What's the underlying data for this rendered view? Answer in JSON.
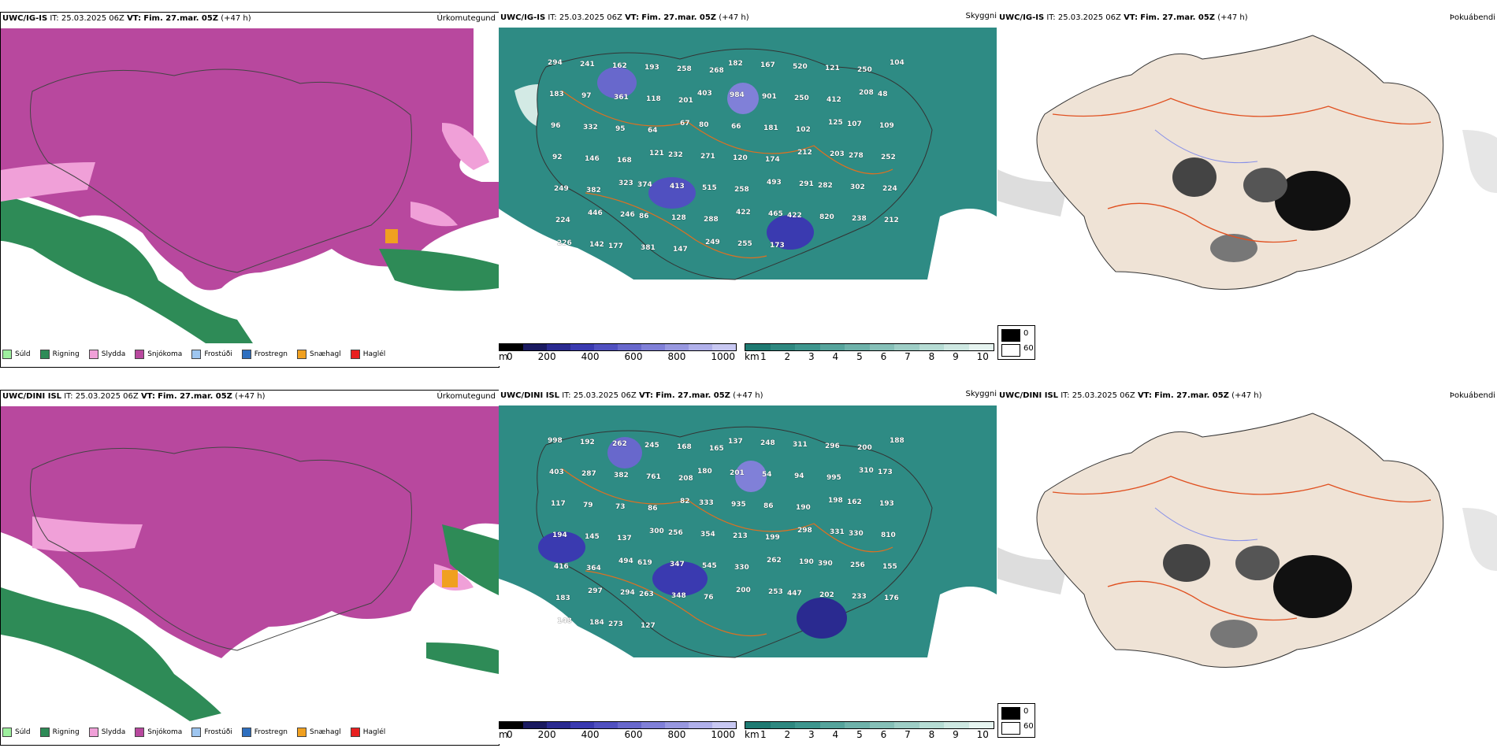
{
  "rows": [
    {
      "model": "UWC/IG-IS",
      "it_label": "IT:",
      "it_value": "25.03.2025 06Z",
      "vt_label": "VT:",
      "vt_value": "Fim. 27.mar. 05Z",
      "lead": "(+47 h)",
      "precip_title": "Úrkomutegund",
      "vis_title": "Skyggni",
      "fog_title": "Þokuábendi",
      "vis_labels": [
        "294",
        "241",
        "162",
        "193",
        "258",
        "268",
        "182",
        "167",
        "520",
        "121",
        "250",
        "104",
        "183",
        "97",
        "361",
        "118",
        "201",
        "403",
        "984",
        "901",
        "250",
        "412",
        "208",
        "48",
        "96",
        "332",
        "95",
        "64",
        "67",
        "80",
        "66",
        "181",
        "102",
        "125",
        "107",
        "109",
        "92",
        "146",
        "168",
        "121",
        "232",
        "271",
        "120",
        "174",
        "212",
        "203",
        "278",
        "252",
        "249",
        "382",
        "323",
        "374",
        "413",
        "515",
        "258",
        "493",
        "291",
        "282",
        "302",
        "224",
        "224",
        "446",
        "246",
        "86",
        "128",
        "288",
        "422",
        "465",
        "422",
        "820",
        "238",
        "212",
        "226",
        "142",
        "177",
        "381",
        "147",
        "249",
        "255",
        "173"
      ]
    },
    {
      "model": "UWC/DINI ISL",
      "it_label": "IT:",
      "it_value": "25.03.2025 06Z",
      "vt_label": "VT:",
      "vt_value": "Fim. 27.mar. 05Z",
      "lead": "(+47 h)",
      "precip_title": "Úrkomutegund",
      "vis_title": "Skyggni",
      "fog_title": "Þokuábendi",
      "vis_labels": [
        "998",
        "192",
        "262",
        "245",
        "168",
        "165",
        "137",
        "248",
        "311",
        "296",
        "200",
        "188",
        "403",
        "287",
        "382",
        "761",
        "208",
        "180",
        "201",
        "54",
        "94",
        "995",
        "310",
        "173",
        "117",
        "79",
        "73",
        "86",
        "82",
        "333",
        "935",
        "86",
        "190",
        "198",
        "162",
        "193",
        "194",
        "145",
        "137",
        "300",
        "256",
        "354",
        "213",
        "199",
        "298",
        "331",
        "330",
        "810",
        "416",
        "364",
        "494",
        "619",
        "347",
        "545",
        "330",
        "262",
        "190",
        "390",
        "256",
        "155",
        "183",
        "297",
        "294",
        "263",
        "348",
        "76",
        "200",
        "253",
        "447",
        "202",
        "233",
        "176",
        "148",
        "184",
        "273",
        "127"
      ]
    }
  ],
  "precip_legend": [
    {
      "label": "Súld",
      "color": "#9ef09e"
    },
    {
      "label": "Rigning",
      "color": "#2e8b57"
    },
    {
      "label": "Slydda",
      "color": "#f0a0d8"
    },
    {
      "label": "Snjókoma",
      "color": "#b8489e"
    },
    {
      "label": "Frostúði",
      "color": "#9ec6f0"
    },
    {
      "label": "Frostregn",
      "color": "#2e6fbf"
    },
    {
      "label": "Snæhagl",
      "color": "#f0a020"
    },
    {
      "label": "Haglél",
      "color": "#e82020"
    }
  ],
  "elev_bar": {
    "unit": "m",
    "ticks": [
      "0",
      "200",
      "400",
      "600",
      "800",
      "1000"
    ],
    "colors": [
      "#000000",
      "#1a1a60",
      "#2a2a90",
      "#3a3ab0",
      "#5050c0",
      "#6868cc",
      "#8080d8",
      "#9898e0",
      "#b0b0ea",
      "#c8c8f2"
    ]
  },
  "vis_bar": {
    "unit": "km",
    "ticks": [
      "1",
      "2",
      "3",
      "4",
      "5",
      "6",
      "7",
      "8",
      "9",
      "10"
    ],
    "colors": [
      "#1e7a72",
      "#2e8880",
      "#3e968e",
      "#56a49c",
      "#6eb2aa",
      "#86c0b8",
      "#9ecec6",
      "#b6dcd4",
      "#cee8e2",
      "#e6f4f0"
    ]
  },
  "fog_key": {
    "values": [
      "0",
      "60"
    ],
    "colors": [
      "#000000",
      "#ffffff"
    ]
  },
  "colors": {
    "sea_vis": "#2e8b84",
    "land_fog": "#efe3d6",
    "snow": "#b8489e",
    "rain": "#2e8b57"
  }
}
